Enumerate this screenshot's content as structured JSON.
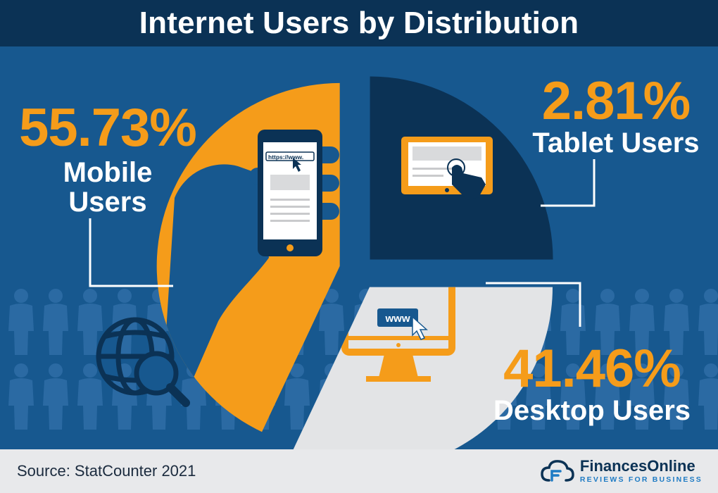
{
  "header": {
    "title": "Internet Users by Distribution"
  },
  "chart_data": {
    "type": "pie",
    "title": "Internet Users by Distribution",
    "slices": [
      {
        "key": "mobile",
        "value": 55.73,
        "percent_label": "55.73%",
        "label": "Mobile Users",
        "color": "#f59c1a"
      },
      {
        "key": "tablet",
        "value": 2.81,
        "percent_label": "2.81%",
        "label": "Tablet Users",
        "color": "#0b3255"
      },
      {
        "key": "desktop",
        "value": 41.46,
        "percent_label": "41.46%",
        "label": "Desktop Users",
        "color": "#e3e4e6"
      }
    ],
    "legend": "none",
    "exploded": true
  },
  "illustrations": {
    "phone_url_text": "https://www.",
    "monitor_url_text": "www",
    "icons": [
      "hand-phone-icon",
      "tablet-touch-icon",
      "desktop-monitor-icon",
      "globe-search-icon",
      "people-silhouette-icon"
    ]
  },
  "footer": {
    "source": "Source: StatCounter 2021",
    "brand_name": "FinancesOnline",
    "brand_tagline": "REVIEWS FOR BUSINESS"
  },
  "colors": {
    "background": "#17588f",
    "title_bar": "#0b3255",
    "accent": "#f59c1a",
    "footer": "#e8e9eb"
  }
}
